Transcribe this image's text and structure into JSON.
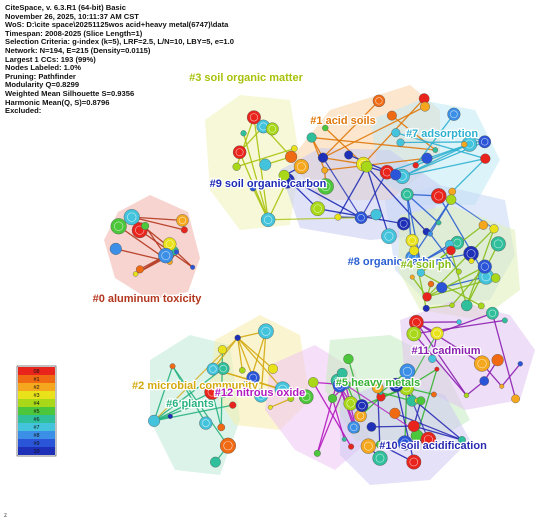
{
  "info": {
    "lines": [
      "CiteSpace, v. 6.3.R1 (64-bit) Basic",
      "November 26, 2025, 10:11:37 AM CST",
      "WoS: D:\\cite space\\20251125wos acid+heavy metal(6747)\\data",
      "Timespan: 2008-2025 (Slice Length=1)",
      "Selection Criteria: g-index (k=5), LRF=2.5, L/N=10, LBY=5, e=1.0",
      "Network: N=194, E=215 (Density=0.0115)",
      "Largest 1 CCs: 193 (99%)",
      "Nodes Labeled: 1.0%",
      "Pruning: Pathfinder",
      "Modularity Q=0.8299",
      "Weighted Mean Silhouette S=0.9356",
      "Harmonic Mean(Q, S)=0.8796",
      "Excluded:"
    ]
  },
  "legend": {
    "years": [
      "08",
      "#1",
      "#2",
      "#3",
      "#4",
      "#5",
      "#6",
      "#7",
      "#8",
      "#9",
      "10"
    ],
    "colors": [
      "#e8241c",
      "#f06a14",
      "#f5a81e",
      "#e9e21a",
      "#a8d818",
      "#4cc63a",
      "#2fbf9a",
      "#44c4dc",
      "#3c8fe6",
      "#2b55d8",
      "#1e2fb8"
    ]
  },
  "clusters": [
    {
      "id": "c0",
      "label": "#0 aluminum toxicity",
      "color": "#b3361e",
      "fill": "#f0b0a8"
    },
    {
      "id": "c1",
      "label": "#1 acid soils",
      "color": "#e0780a",
      "fill": "#fbd1a6"
    },
    {
      "id": "c2",
      "label": "#2 microbial community",
      "color": "#d4a90f",
      "fill": "#f6ecaa"
    },
    {
      "id": "c3",
      "label": "#3 soil organic matter",
      "color": "#a9c20c",
      "fill": "#eef3b6"
    },
    {
      "id": "c4",
      "label": "#4 soil ph",
      "color": "#86bd18",
      "fill": "#dff1b8"
    },
    {
      "id": "c5",
      "label": "#5 heavy metals",
      "color": "#35b234",
      "fill": "#c5ebc0"
    },
    {
      "id": "c6",
      "label": "#6 plants",
      "color": "#27b27f",
      "fill": "#bfead8"
    },
    {
      "id": "c7",
      "label": "#7 adsorption",
      "color": "#2cb0d0",
      "fill": "#bfeaf5"
    },
    {
      "id": "c8",
      "label": "#8 organic carbon",
      "color": "#2a5fd2",
      "fill": "#c7d7f5"
    },
    {
      "id": "c9",
      "label": "#9 soil organic carbon",
      "color": "#1d2bb4",
      "fill": "#c6cbf0"
    },
    {
      "id": "c10",
      "label": "#10 soil acidification",
      "color": "#2a2ab4",
      "fill": "#cdc9f2"
    },
    {
      "id": "c11",
      "label": "#11 cadmium",
      "color": "#8a1fb0",
      "fill": "#e1c3f0"
    },
    {
      "id": "c12",
      "label": "#12 nitrous oxide",
      "color": "#b21ac0",
      "fill": "#efc4f3"
    }
  ],
  "corner_mark": "z"
}
